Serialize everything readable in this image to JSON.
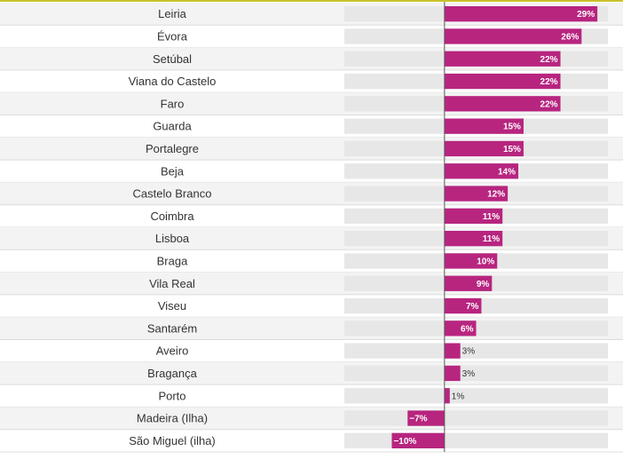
{
  "chart_data": {
    "type": "bar",
    "orientation": "horizontal",
    "categories": [
      "Leiria",
      "Évora",
      "Setúbal",
      "Viana do Castelo",
      "Faro",
      "Guarda",
      "Portalegre",
      "Beja",
      "Castelo Branco",
      "Coimbra",
      "Lisboa",
      "Braga",
      "Vila Real",
      "Viseu",
      "Santarém",
      "Aveiro",
      "Bragança",
      "Porto",
      "Madeira (Ilha)",
      "São Miguel (ilha)"
    ],
    "values": [
      29,
      26,
      22,
      22,
      22,
      15,
      15,
      14,
      12,
      11,
      11,
      10,
      9,
      7,
      6,
      3,
      3,
      1,
      -7,
      -10
    ],
    "value_labels": [
      "29%",
      "26%",
      "22%",
      "22%",
      "22%",
      "15%",
      "15%",
      "14%",
      "12%",
      "11%",
      "11%",
      "10%",
      "9%",
      "7%",
      "6%",
      "3%",
      "3%",
      "1%",
      "−7%",
      "−10%"
    ],
    "xlim": [
      -19,
      31
    ],
    "grid": false,
    "legend": "none",
    "colors": {
      "bar": "#b7257f",
      "track": "#e7e7e7",
      "row_alt": "#f3f3f3",
      "row_line": "#dcdcdc",
      "zero_line": "#555555",
      "top_rule": "#c9c22a"
    }
  }
}
